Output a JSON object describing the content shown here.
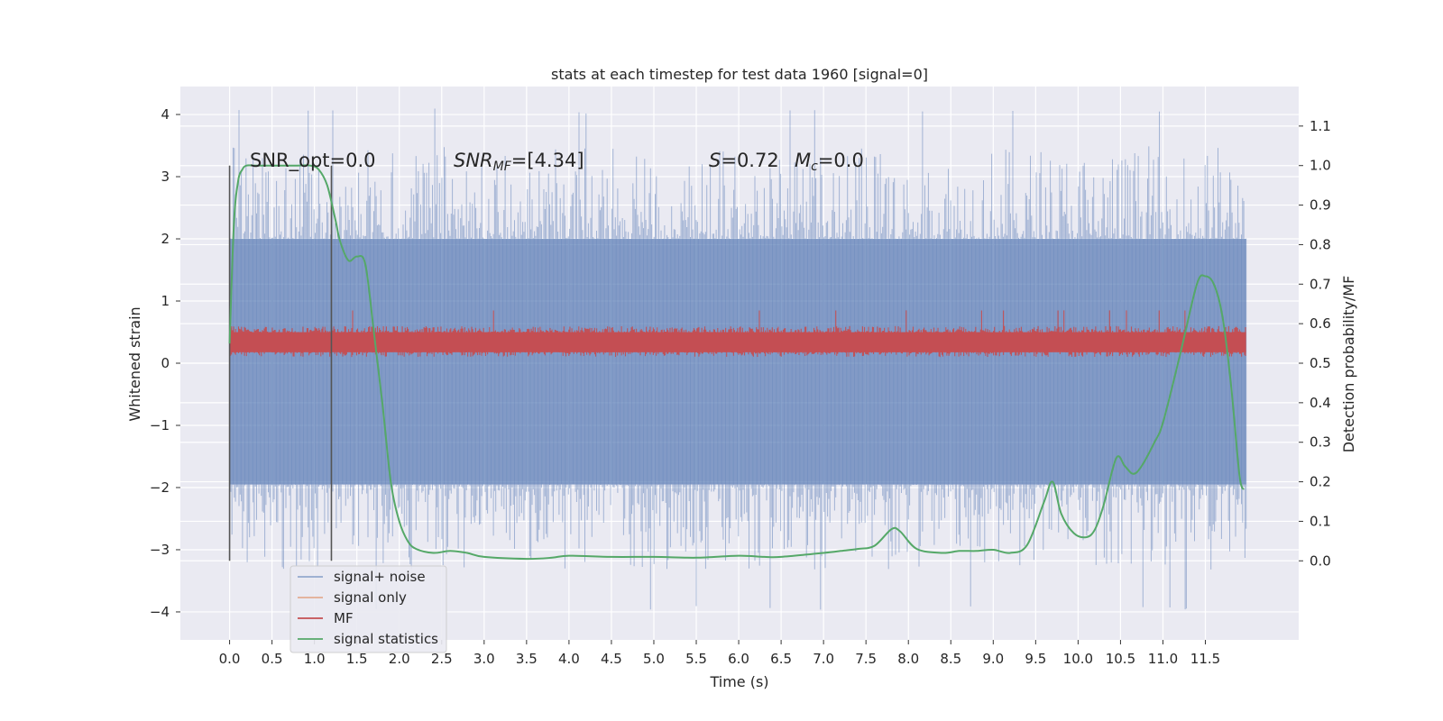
{
  "chart_data": {
    "type": "line",
    "title": "stats at each timestep for test data 1960 [signal=0]",
    "xlabel": "Time (s)",
    "ylabel_left": "Whitened strain",
    "ylabel_right": "Detection probability/MF",
    "xlim": [
      -0.58,
      12.6
    ],
    "ylim_left": [
      -4.45,
      4.45
    ],
    "ylim_right": [
      -0.2,
      1.2
    ],
    "x_ticks": [
      "0.0",
      "0.5",
      "1.0",
      "1.5",
      "2.0",
      "2.5",
      "3.0",
      "3.5",
      "4.0",
      "4.5",
      "5.0",
      "5.5",
      "6.0",
      "6.5",
      "7.0",
      "7.5",
      "8.0",
      "8.5",
      "9.0",
      "9.5",
      "10.0",
      "10.5",
      "11.0",
      "11.5"
    ],
    "y_ticks_left": [
      "4",
      "3",
      "2",
      "1",
      "0",
      "−1",
      "−2",
      "−3",
      "−4"
    ],
    "y_ticks_right": [
      "1.1",
      "1.0",
      "0.9",
      "0.8",
      "0.7",
      "0.6",
      "0.5",
      "0.4",
      "0.3",
      "0.2",
      "0.1",
      "0.0"
    ],
    "grid": true,
    "legend_position": "bottom-left",
    "annotations": {
      "snr_opt": "SNR_opt=0.0",
      "snr_mf_sym": "SNR",
      "snr_mf_sub": "MF",
      "snr_mf_val": "=[4.34]",
      "s_sym": "S",
      "s_val": "=0.72",
      "mc_sym": "M",
      "mc_sub": "c",
      "mc_val": "=0.0"
    },
    "vertical_markers": [
      0.0,
      1.2
    ],
    "series": [
      {
        "name": "signal+ noise",
        "color": "#4c72b0",
        "axis": "left",
        "x_range": [
          0.0,
          11.98
        ],
        "envelope_upper": 2.0,
        "envelope_lower": -1.95,
        "peak_max": 4.1,
        "peak_min": -3.97
      },
      {
        "name": "signal only",
        "color": "#dd8452",
        "axis": "left",
        "values": []
      },
      {
        "name": "MF",
        "color": "#c44e52",
        "axis": "left",
        "x_range": [
          0.0,
          11.98
        ],
        "band_center": 0.35,
        "band_halfwidth": 0.25
      },
      {
        "name": "signal statistics",
        "color": "#55a868",
        "axis": "right",
        "x": [
          0.0,
          0.05,
          0.1,
          0.15,
          0.2,
          0.3,
          0.5,
          0.8,
          0.95,
          1.05,
          1.15,
          1.25,
          1.3,
          1.4,
          1.5,
          1.6,
          1.7,
          1.8,
          1.9,
          2.0,
          2.1,
          2.2,
          2.4,
          2.6,
          2.8,
          3.0,
          3.5,
          3.8,
          4.0,
          4.5,
          5.0,
          5.5,
          6.0,
          6.3,
          6.5,
          7.0,
          7.2,
          7.4,
          7.6,
          7.8,
          7.9,
          8.1,
          8.4,
          8.6,
          8.8,
          9.0,
          9.2,
          9.4,
          9.6,
          9.7,
          9.8,
          9.95,
          10.1,
          10.2,
          10.3,
          10.45,
          10.55,
          10.65,
          10.75,
          10.9,
          11.0,
          11.2,
          11.4,
          11.5,
          11.6,
          11.7,
          11.8,
          11.9,
          11.95
        ],
        "y": [
          0.55,
          0.85,
          0.96,
          0.99,
          1.0,
          1.0,
          1.0,
          1.0,
          1.0,
          0.99,
          0.95,
          0.86,
          0.81,
          0.76,
          0.77,
          0.75,
          0.58,
          0.4,
          0.2,
          0.1,
          0.05,
          0.03,
          0.02,
          0.025,
          0.02,
          0.01,
          0.005,
          0.008,
          0.013,
          0.01,
          0.01,
          0.008,
          0.013,
          0.01,
          0.01,
          0.02,
          0.025,
          0.03,
          0.038,
          0.08,
          0.075,
          0.03,
          0.02,
          0.025,
          0.025,
          0.028,
          0.02,
          0.04,
          0.15,
          0.2,
          0.12,
          0.07,
          0.06,
          0.08,
          0.14,
          0.26,
          0.24,
          0.22,
          0.24,
          0.3,
          0.35,
          0.52,
          0.7,
          0.72,
          0.7,
          0.62,
          0.45,
          0.22,
          0.18
        ]
      }
    ]
  }
}
